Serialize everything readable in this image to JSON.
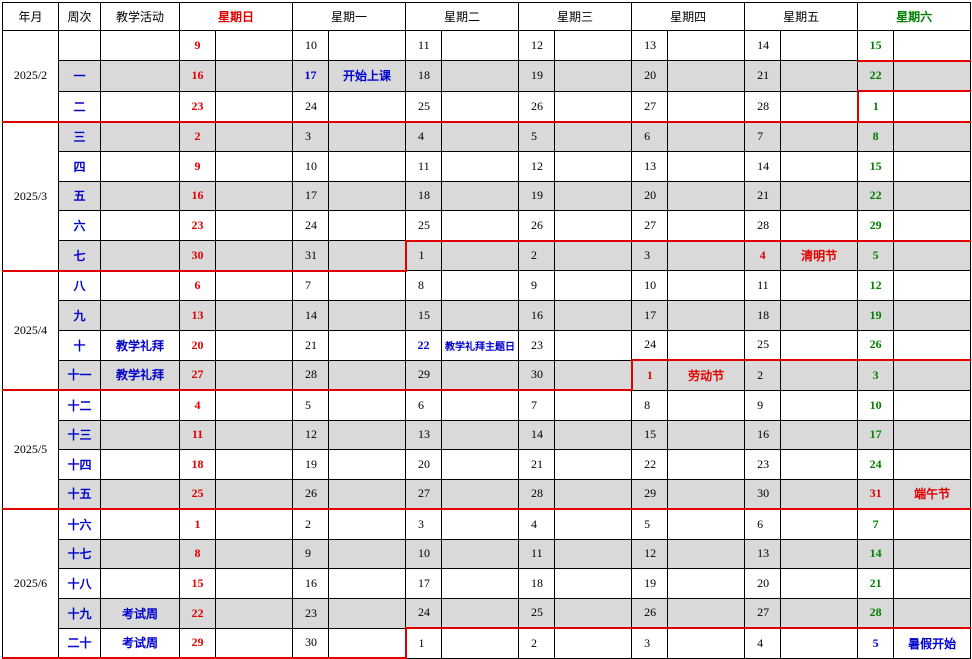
{
  "header": {
    "year_month": "年月",
    "week_no": "周次",
    "activity": "教学活动",
    "sun": "星期日",
    "mon": "星期一",
    "tue": "星期二",
    "wed": "星期三",
    "thu": "星期四",
    "fri": "星期五",
    "sat": "星期六"
  },
  "months": {
    "feb": "2025/2",
    "mar": "2025/3",
    "apr": "2025/4",
    "may": "2025/5",
    "jun": "2025/6"
  },
  "colors": {
    "sunday": "#e00000",
    "saturday": "#008000",
    "event": "#0000cc",
    "holiday": "#e00000",
    "shade": "#d9d9d9",
    "month_boundary": "#e00000"
  },
  "rows": [
    {
      "week": "",
      "activity": "",
      "days": [
        "9",
        "10",
        "11",
        "12",
        "13",
        "14",
        "15"
      ],
      "notes": [
        "",
        "",
        "",
        "",
        "",
        "",
        ""
      ]
    },
    {
      "week": "一",
      "activity": "",
      "days": [
        "16",
        "17",
        "18",
        "19",
        "20",
        "21",
        "22"
      ],
      "notes": [
        "",
        "开始上课",
        "",
        "",
        "",
        "",
        ""
      ]
    },
    {
      "week": "二",
      "activity": "",
      "days": [
        "23",
        "24",
        "25",
        "26",
        "27",
        "28",
        "1"
      ],
      "notes": [
        "",
        "",
        "",
        "",
        "",
        "",
        ""
      ]
    },
    {
      "week": "三",
      "activity": "",
      "days": [
        "2",
        "3",
        "4",
        "5",
        "6",
        "7",
        "8"
      ],
      "notes": [
        "",
        "",
        "",
        "",
        "",
        "",
        ""
      ]
    },
    {
      "week": "四",
      "activity": "",
      "days": [
        "9",
        "10",
        "11",
        "12",
        "13",
        "14",
        "15"
      ],
      "notes": [
        "",
        "",
        "",
        "",
        "",
        "",
        ""
      ]
    },
    {
      "week": "五",
      "activity": "",
      "days": [
        "16",
        "17",
        "18",
        "19",
        "20",
        "21",
        "22"
      ],
      "notes": [
        "",
        "",
        "",
        "",
        "",
        "",
        ""
      ]
    },
    {
      "week": "六",
      "activity": "",
      "days": [
        "23",
        "24",
        "25",
        "26",
        "27",
        "28",
        "29"
      ],
      "notes": [
        "",
        "",
        "",
        "",
        "",
        "",
        ""
      ]
    },
    {
      "week": "七",
      "activity": "",
      "days": [
        "30",
        "31",
        "1",
        "2",
        "3",
        "4",
        "5"
      ],
      "notes": [
        "",
        "",
        "",
        "",
        "",
        "清明节",
        ""
      ]
    },
    {
      "week": "八",
      "activity": "",
      "days": [
        "6",
        "7",
        "8",
        "9",
        "10",
        "11",
        "12"
      ],
      "notes": [
        "",
        "",
        "",
        "",
        "",
        "",
        ""
      ]
    },
    {
      "week": "九",
      "activity": "",
      "days": [
        "13",
        "14",
        "15",
        "16",
        "17",
        "18",
        "19"
      ],
      "notes": [
        "",
        "",
        "",
        "",
        "",
        "",
        ""
      ]
    },
    {
      "week": "十",
      "activity": "教学礼拜",
      "days": [
        "20",
        "21",
        "22",
        "23",
        "24",
        "25",
        "26"
      ],
      "notes": [
        "",
        "",
        "教学礼拜主题日",
        "",
        "",
        "",
        ""
      ]
    },
    {
      "week": "十一",
      "activity": "教学礼拜",
      "days": [
        "27",
        "28",
        "29",
        "30",
        "1",
        "2",
        "3"
      ],
      "notes": [
        "",
        "",
        "",
        "",
        "劳动节",
        "",
        ""
      ]
    },
    {
      "week": "十二",
      "activity": "",
      "days": [
        "4",
        "5",
        "6",
        "7",
        "8",
        "9",
        "10"
      ],
      "notes": [
        "",
        "",
        "",
        "",
        "",
        "",
        ""
      ]
    },
    {
      "week": "十三",
      "activity": "",
      "days": [
        "11",
        "12",
        "13",
        "14",
        "15",
        "16",
        "17"
      ],
      "notes": [
        "",
        "",
        "",
        "",
        "",
        "",
        ""
      ]
    },
    {
      "week": "十四",
      "activity": "",
      "days": [
        "18",
        "19",
        "20",
        "21",
        "22",
        "23",
        "24"
      ],
      "notes": [
        "",
        "",
        "",
        "",
        "",
        "",
        ""
      ]
    },
    {
      "week": "十五",
      "activity": "",
      "days": [
        "25",
        "26",
        "27",
        "28",
        "29",
        "30",
        "31"
      ],
      "notes": [
        "",
        "",
        "",
        "",
        "",
        "",
        "端午节"
      ]
    },
    {
      "week": "十六",
      "activity": "",
      "days": [
        "1",
        "2",
        "3",
        "4",
        "5",
        "6",
        "7"
      ],
      "notes": [
        "",
        "",
        "",
        "",
        "",
        "",
        ""
      ]
    },
    {
      "week": "十七",
      "activity": "",
      "days": [
        "8",
        "9",
        "10",
        "11",
        "12",
        "13",
        "14"
      ],
      "notes": [
        "",
        "",
        "",
        "",
        "",
        "",
        ""
      ]
    },
    {
      "week": "十八",
      "activity": "",
      "days": [
        "15",
        "16",
        "17",
        "18",
        "19",
        "20",
        "21"
      ],
      "notes": [
        "",
        "",
        "",
        "",
        "",
        "",
        ""
      ]
    },
    {
      "week": "十九",
      "activity": "考试周",
      "days": [
        "22",
        "23",
        "24",
        "25",
        "26",
        "27",
        "28"
      ],
      "notes": [
        "",
        "",
        "",
        "",
        "",
        "",
        ""
      ]
    },
    {
      "week": "二十",
      "activity": "考试周",
      "days": [
        "29",
        "30",
        "1",
        "2",
        "3",
        "4",
        "5"
      ],
      "notes": [
        "",
        "",
        "",
        "",
        "",
        "",
        "暑假开始"
      ]
    }
  ]
}
